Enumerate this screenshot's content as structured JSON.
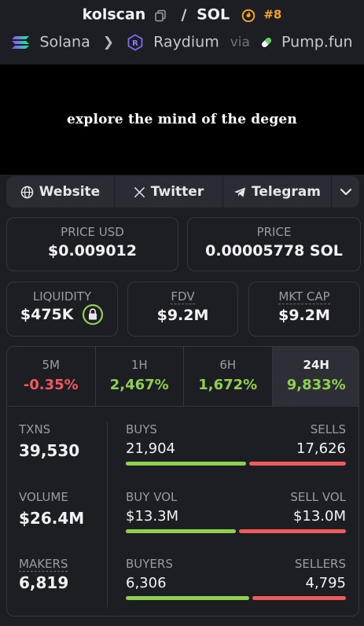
{
  "header": {
    "app": "kolscan",
    "quote": "SOL",
    "rank": "#8",
    "chain": "Solana",
    "dex": "Raydium",
    "via": "via",
    "launchpad": "Pump.fun"
  },
  "banner": {
    "text": "explore the mind of the degen"
  },
  "links": {
    "website": "Website",
    "twitter": "Twitter",
    "telegram": "Telegram"
  },
  "price": {
    "usd_label": "PRICE USD",
    "usd_value": "$0.009012",
    "native_label": "PRICE",
    "native_value": "0.00005778 SOL"
  },
  "market": {
    "liquidity_label": "LIQUIDITY",
    "liquidity_value": "$475K",
    "fdv_label": "FDV",
    "fdv_value": "$9.2M",
    "mktcap_label": "MKT CAP",
    "mktcap_value": "$9.2M"
  },
  "timeframes": [
    {
      "label": "5M",
      "change": "-0.35%"
    },
    {
      "label": "1H",
      "change": "2,467%"
    },
    {
      "label": "6H",
      "change": "1,672%"
    },
    {
      "label": "24H",
      "change": "9,833%"
    }
  ],
  "active_timeframe": "24H",
  "stats": {
    "txns_label": "TXNS",
    "txns_value": "39,530",
    "volume_label": "VOLUME",
    "volume_value": "$26.4M",
    "makers_label": "MAKERS",
    "makers_value": "6,819",
    "buys_label": "BUYS",
    "buys_value": "21,904",
    "sells_label": "SELLS",
    "sells_value": "17,626",
    "buyvol_label": "BUY VOL",
    "buyvol_value": "$13.3M",
    "sellvol_label": "SELL VOL",
    "sellvol_value": "$13.0M",
    "buyers_label": "BUYERS",
    "buyers_value": "6,306",
    "sellers_label": "SELLERS",
    "sellers_value": "4,795"
  },
  "bars": {
    "buys_fraction": 0.554,
    "buyvol_fraction": 0.506,
    "buyers_fraction": 0.568
  },
  "colors": {
    "positive": "#8fd14f",
    "negative": "#ef5a5a",
    "rank": "#f5a524"
  },
  "icons": [
    "copy-icon",
    "fire-icon",
    "solana-icon",
    "chevron-right-icon",
    "raydium-icon",
    "pill-icon",
    "globe-icon",
    "x-icon",
    "telegram-icon",
    "chevron-down-icon",
    "lock-icon"
  ]
}
